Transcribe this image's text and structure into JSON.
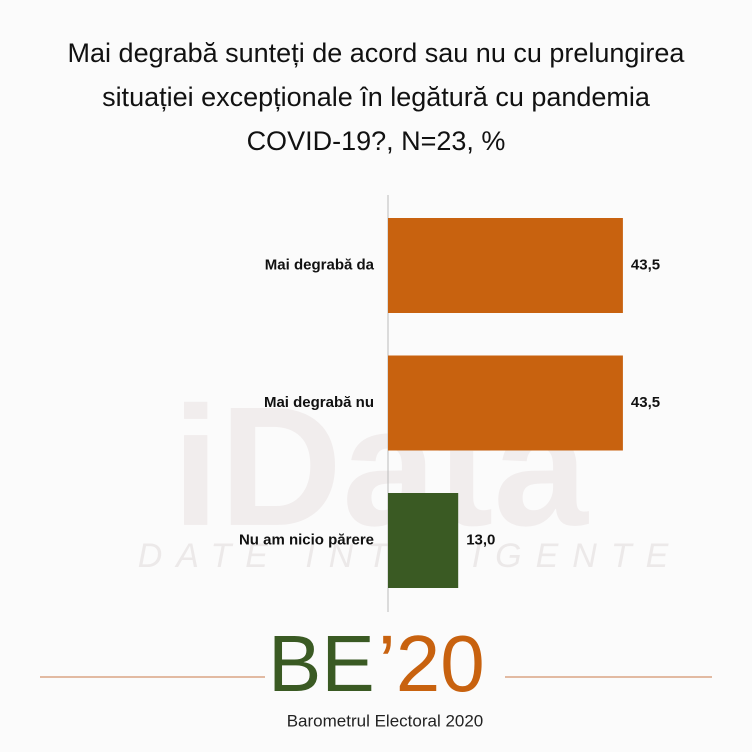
{
  "chart_data": {
    "type": "bar",
    "orientation": "horizontal",
    "title": [
      "Mai degrabă  sunteți de acord sau nu cu prelungirea",
      "situației excepționale  în legătură cu pandemia",
      "COVID-19?, N=23, %"
    ],
    "categories": [
      "Mai degrabă da",
      "Mai degrabă nu",
      "Nu am nicio părere"
    ],
    "values": [
      43.5,
      43.5,
      13.0
    ],
    "value_labels": [
      "43,5",
      "43,5",
      "13,0"
    ],
    "colors": [
      "#c8620f",
      "#c8620f",
      "#3a5a23"
    ]
  },
  "watermark": {
    "logo": "iData",
    "tagline": "DATE INTELIGENTE"
  },
  "footer": {
    "logo_left": "BE",
    "logo_right": "’20",
    "caption": "Barometrul Electoral 2020"
  }
}
